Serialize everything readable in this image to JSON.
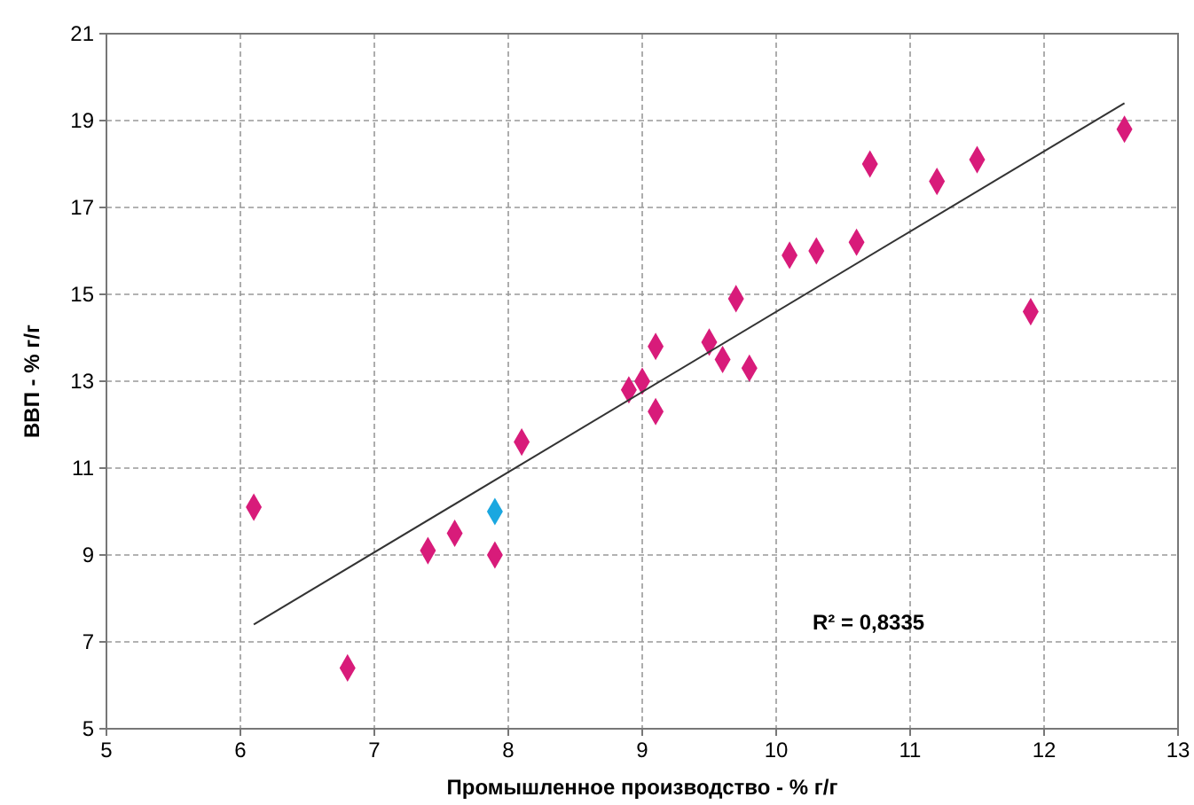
{
  "chart_data": {
    "type": "scatter",
    "xlabel": "Промышленное производство - % г/г",
    "ylabel": "ВВП - % г/г",
    "xlim": [
      5,
      13
    ],
    "xticks": [
      5,
      6,
      7,
      8,
      9,
      10,
      11,
      12,
      13
    ],
    "ylim": [
      5,
      21
    ],
    "yticks": [
      5,
      7,
      9,
      11,
      13,
      15,
      17,
      19,
      21
    ],
    "grid": true,
    "marker": "diamond",
    "annotations": [
      "R² = 0,8335"
    ],
    "series": [
      {
        "x": [
          6.1,
          6.8,
          7.4,
          7.6,
          7.9,
          7.9,
          8.1,
          8.9,
          9.0,
          9.1,
          9.1,
          9.5,
          9.6,
          9.7,
          9.8,
          10.1,
          10.3,
          10.6,
          10.7,
          11.2,
          11.5,
          11.9,
          12.6
        ],
        "values": [
          10.1,
          6.4,
          9.1,
          9.5,
          10.0,
          9.0,
          11.6,
          12.8,
          13.0,
          13.8,
          12.3,
          13.9,
          13.5,
          14.9,
          13.3,
          15.9,
          16.0,
          16.2,
          18.0,
          17.6,
          18.1,
          14.6,
          18.8
        ],
        "colors": [
          "#d81b7a",
          "#d81b7a",
          "#d81b7a",
          "#d81b7a",
          "#1aa7e0",
          "#d81b7a",
          "#d81b7a",
          "#d81b7a",
          "#d81b7a",
          "#d81b7a",
          "#d81b7a",
          "#d81b7a",
          "#d81b7a",
          "#d81b7a",
          "#d81b7a",
          "#d81b7a",
          "#d81b7a",
          "#d81b7a",
          "#d81b7a",
          "#d81b7a",
          "#d81b7a",
          "#d81b7a",
          "#d81b7a"
        ]
      },
      {
        "type": "line",
        "color": "#333333",
        "marker": "none",
        "x": [
          6.1,
          12.6
        ],
        "values": [
          7.4,
          19.4
        ]
      }
    ]
  }
}
